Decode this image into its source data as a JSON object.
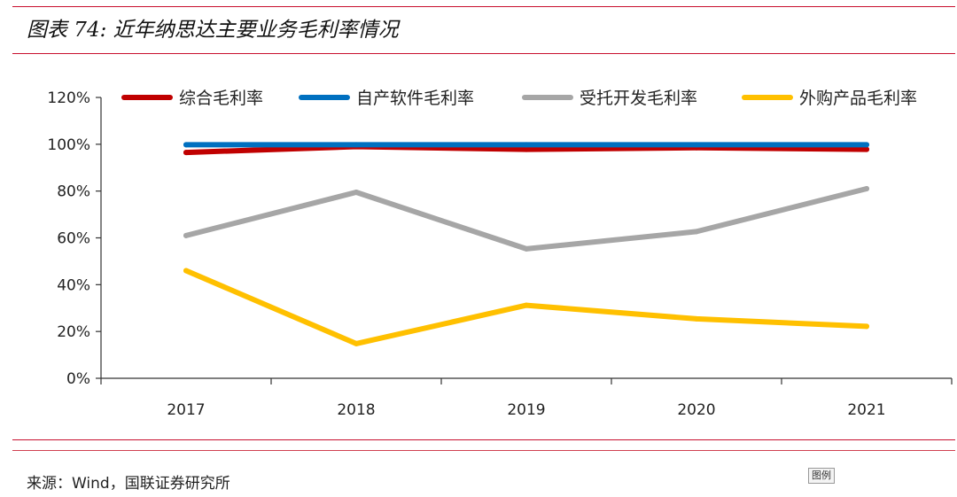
{
  "header": {
    "title": "图表 74:  近年纳思达主要业务毛利率情况"
  },
  "footer": {
    "source": "来源：Wind，国联证券研究所",
    "legend_tag": "图例"
  },
  "chart_data": {
    "type": "line",
    "title": "",
    "xlabel": "",
    "ylabel": "",
    "categories": [
      "2017",
      "2018",
      "2019",
      "2020",
      "2021"
    ],
    "ylim": [
      0,
      1.2
    ],
    "yticks": [
      0,
      0.2,
      0.4,
      0.6,
      0.8,
      1.0,
      1.2
    ],
    "ytick_labels": [
      "0%",
      "20%",
      "40%",
      "60%",
      "80%",
      "100%",
      "120%"
    ],
    "grid": false,
    "legend": "top",
    "series": [
      {
        "name": "综合毛利率",
        "color": "#c00000",
        "values": [
          0.965,
          0.99,
          0.978,
          0.985,
          0.978
        ]
      },
      {
        "name": "自产软件毛利率",
        "color": "#0070c0",
        "values": [
          0.998,
          0.998,
          0.998,
          0.998,
          0.998
        ]
      },
      {
        "name": "受托开发毛利率",
        "color": "#a6a6a6",
        "values": [
          0.61,
          0.795,
          0.553,
          0.627,
          0.81
        ]
      },
      {
        "name": "外购产品毛利率",
        "color": "#ffc000",
        "values": [
          0.46,
          0.148,
          0.312,
          0.254,
          0.222
        ]
      }
    ]
  }
}
